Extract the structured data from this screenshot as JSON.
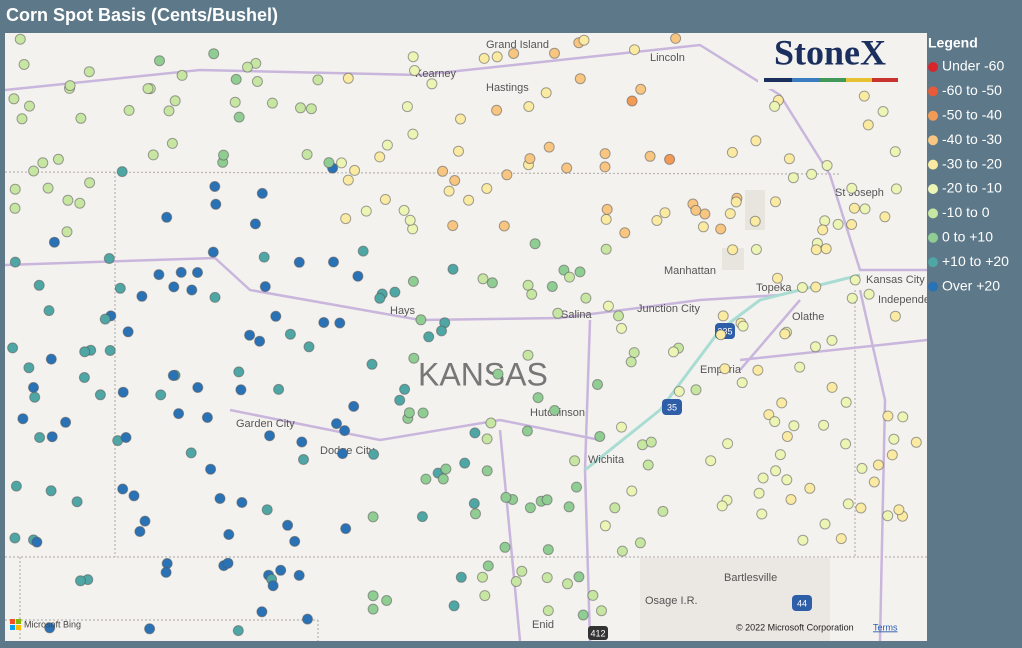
{
  "header": {
    "title": "Corn Spot Basis (Cents/Bushel)"
  },
  "logo": {
    "text": "StoneX"
  },
  "legend": {
    "title": "Legend",
    "items": [
      {
        "label": "Under -60",
        "color": "#d7262b"
      },
      {
        "label": "-60 to -50",
        "color": "#e85b3a"
      },
      {
        "label": "-50 to -40",
        "color": "#f39a55"
      },
      {
        "label": "-40 to -30",
        "color": "#f8c680"
      },
      {
        "label": "-30 to -20",
        "color": "#fbeba2"
      },
      {
        "label": "-20 to -10",
        "color": "#edf5b5"
      },
      {
        "label": "-10 to 0",
        "color": "#c7e6a2"
      },
      {
        "label": "0 to +10",
        "color": "#8fcd92"
      },
      {
        "label": "+10 to +20",
        "color": "#4ea7a4"
      },
      {
        "label": "Over +20",
        "color": "#2a72b6"
      }
    ]
  },
  "map_labels": [
    "Grand Island",
    "Kearney",
    "Hastings",
    "Lincoln",
    "St Joseph",
    "Kansas City",
    "Independence",
    "Manhattan",
    "Topeka",
    "Junction City",
    "Salina",
    "Hays",
    "KANSAS",
    "Olathe",
    "Emporia",
    "Hutchinson",
    "Garden City",
    "Dodge City",
    "Wichita",
    "Bartlesville",
    "Osage I.R.",
    "Enid"
  ],
  "shields": [
    "335",
    "35",
    "44",
    "412"
  ],
  "footer": {
    "provider": "Microsoft Bing",
    "copyright": "© 2022 Microsoft Corporation",
    "terms": "Terms"
  }
}
